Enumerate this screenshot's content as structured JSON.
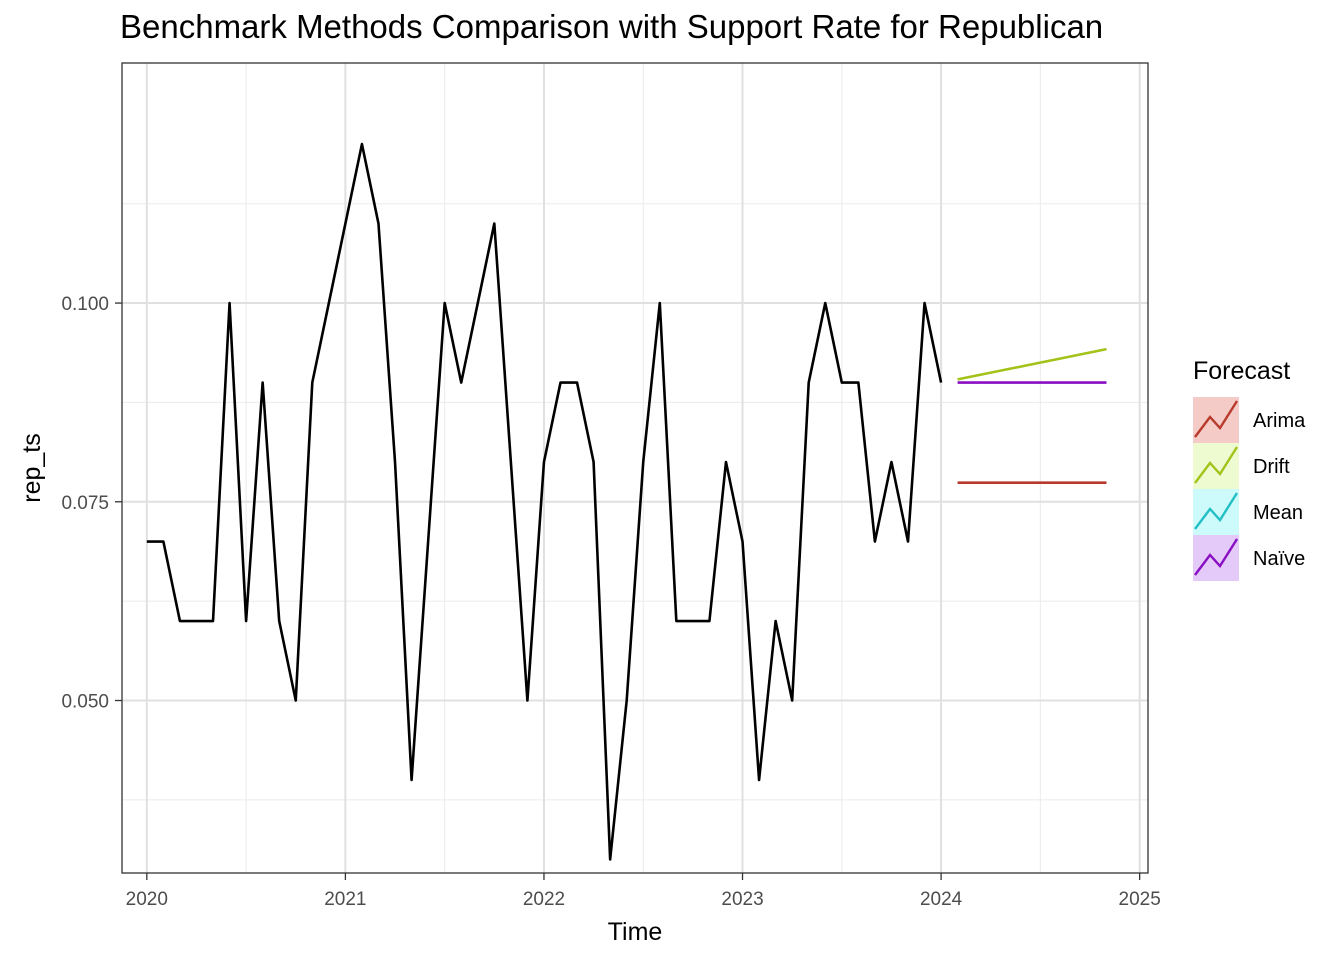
{
  "chart_data": {
    "type": "line",
    "title": "Benchmark Methods Comparison with Support Rate for Republican",
    "xlabel": "Time",
    "ylabel": "rep_ts",
    "xlim": [
      2019.875,
      2025.042
    ],
    "ylim": [
      0.0283,
      0.1302
    ],
    "x_ticks": [
      2020,
      2021,
      2022,
      2023,
      2024,
      2025
    ],
    "x_tick_labels": [
      "2020",
      "2021",
      "2022",
      "2023",
      "2024",
      "2025"
    ],
    "y_ticks": [
      0.05,
      0.075,
      0.1
    ],
    "y_tick_labels": [
      "0.050",
      "0.075",
      "0.100"
    ],
    "grid": true,
    "legend_position": "right",
    "legend_title": "Forecast",
    "observed": {
      "start": 2020,
      "frequency": 12,
      "values": [
        0.07,
        0.07,
        0.06,
        0.06,
        0.06,
        0.1,
        0.06,
        0.09,
        0.06,
        0.05,
        0.09,
        0.1,
        0.11,
        0.12,
        0.11,
        0.08,
        0.04,
        0.07,
        0.1,
        0.09,
        0.1,
        0.11,
        0.08,
        0.05,
        0.08,
        0.09,
        0.09,
        0.08,
        0.03,
        0.05,
        0.08,
        0.1,
        0.06,
        0.06,
        0.06,
        0.08,
        0.07,
        0.04,
        0.06,
        0.05,
        0.09,
        0.1,
        0.09,
        0.09,
        0.07,
        0.08,
        0.07,
        0.1,
        0.09
      ],
      "color": "#000000"
    },
    "series": [
      {
        "name": "Arima",
        "color": "#b83a2c",
        "fill": "#f4cbc6",
        "x": [
          2024.083,
          2024.833
        ],
        "values": [
          0.0774,
          0.0774
        ]
      },
      {
        "name": "Drift",
        "color": "#a3c21a",
        "fill": "#eefad0",
        "x": [
          2024.083,
          2024.833
        ],
        "values": [
          0.0904,
          0.0942
        ]
      },
      {
        "name": "Mean",
        "color": "#22bfc4",
        "fill": "#cdfafa",
        "x": [],
        "values": []
      },
      {
        "name": "Naïve",
        "color": "#8a0fc4",
        "fill": "#e3caf8",
        "x": [
          2024.083,
          2024.833
        ],
        "values": [
          0.09,
          0.09
        ]
      }
    ]
  }
}
